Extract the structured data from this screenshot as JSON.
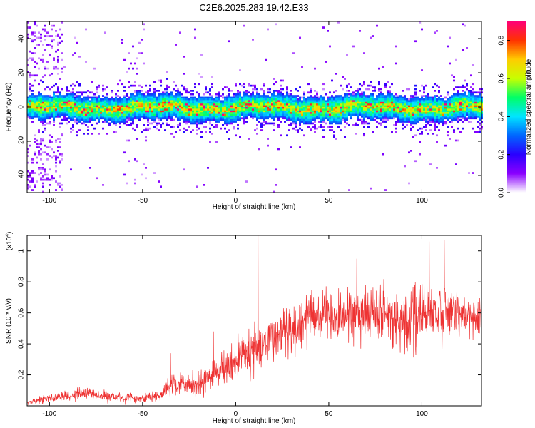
{
  "title": "C2E6.2025.283.19.42.E33",
  "chart_data": [
    {
      "type": "heatmap",
      "xlabel": "Height of straight line (km)",
      "ylabel": "Frequency (Hz)",
      "xlim": [
        -112,
        132
      ],
      "ylim": [
        -50,
        50
      ],
      "xticks": [
        -100,
        -50,
        0,
        50,
        100
      ],
      "yticks": [
        -40,
        -20,
        0,
        20,
        40
      ],
      "colorbar": {
        "label": "Normalized spectral amplitude",
        "range": [
          0,
          0.9
        ],
        "ticks": [
          "0.0",
          "0.2",
          "0.4",
          "0.6",
          "0.8"
        ],
        "colors": [
          "#ffffff",
          "#8a00ff",
          "#2a00ff",
          "#0066ff",
          "#00e5ff",
          "#00ff66",
          "#c8ff00",
          "#ffcc00",
          "#ff3300",
          "#ff0077"
        ]
      },
      "band_center_hz": 0,
      "band_halfwidth_hz": 7
    },
    {
      "type": "line",
      "xlabel": "Height of straight line (km)",
      "ylabel": "SNR (10 * v/v)",
      "yscale_label": "(x10",
      "yscale_exp": "4",
      "yscale_close": ")",
      "xlim": [
        -112,
        132
      ],
      "ylim": [
        0,
        1.1
      ],
      "xticks": [
        -100,
        -50,
        0,
        50,
        100
      ],
      "yticks": [
        "0.2",
        "0.4",
        "0.6",
        "0.8",
        "1"
      ],
      "color": "#ee3333",
      "envelope": {
        "x": [
          -112,
          -100,
          -80,
          -60,
          -50,
          -40,
          -35,
          -20,
          -10,
          0,
          10,
          20,
          30,
          40,
          50,
          60,
          70,
          80,
          90,
          100,
          110,
          120,
          132
        ],
        "mean": [
          0.02,
          0.05,
          0.08,
          0.05,
          0.05,
          0.07,
          0.14,
          0.14,
          0.22,
          0.3,
          0.38,
          0.44,
          0.5,
          0.58,
          0.58,
          0.58,
          0.6,
          0.6,
          0.55,
          0.6,
          0.6,
          0.58,
          0.58
        ],
        "amp": [
          0.02,
          0.04,
          0.06,
          0.05,
          0.04,
          0.06,
          0.1,
          0.12,
          0.16,
          0.2,
          0.22,
          0.22,
          0.24,
          0.24,
          0.22,
          0.22,
          0.26,
          0.26,
          0.3,
          0.3,
          0.26,
          0.22,
          0.2
        ]
      },
      "peaks": [
        {
          "x": -35,
          "y": 0.34
        },
        {
          "x": -12,
          "y": 0.48
        },
        {
          "x": 12,
          "y": 1.1
        },
        {
          "x": 65,
          "y": 0.95
        },
        {
          "x": 104,
          "y": 1.06
        },
        {
          "x": 112,
          "y": 1.07
        }
      ]
    }
  ]
}
